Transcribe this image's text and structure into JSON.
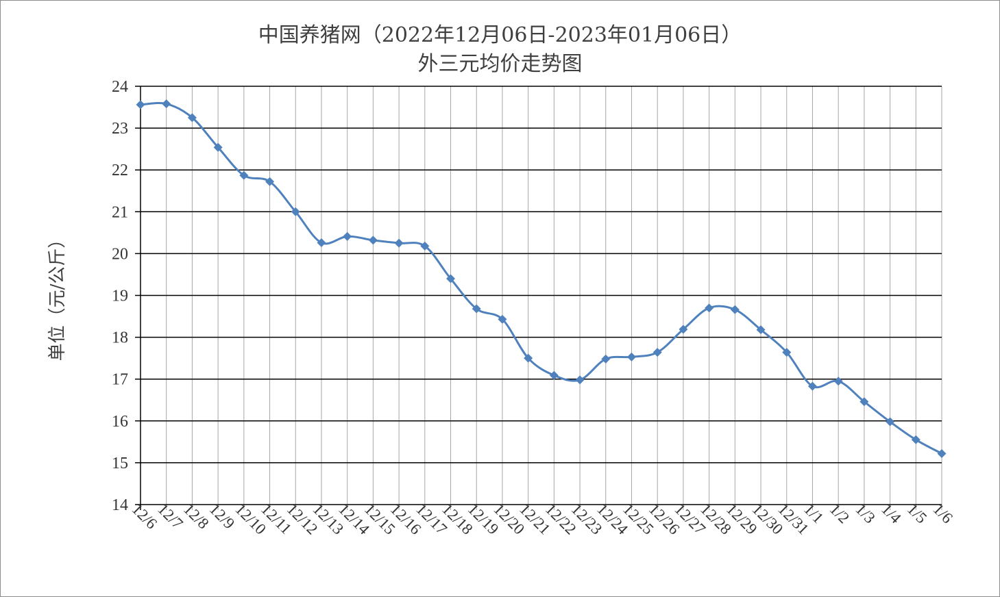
{
  "chart_data": {
    "type": "line",
    "title": "中国养猪网（2022年12月06日-2023年01月06日）",
    "subtitle": "外三元均价走势图",
    "xlabel": "",
    "ylabel": "单位（元/公斤）",
    "ylim": [
      14,
      24
    ],
    "yticks": [
      14,
      15,
      16,
      17,
      18,
      19,
      20,
      21,
      22,
      23,
      24
    ],
    "grid": true,
    "smooth": true,
    "categories": [
      "12/6",
      "12/7",
      "12/8",
      "12/9",
      "12/10",
      "12/11",
      "12/12",
      "12/13",
      "12/14",
      "12/15",
      "12/16",
      "12/17",
      "12/18",
      "12/19",
      "12/20",
      "12/21",
      "12/22",
      "12/23",
      "12/24",
      "12/25",
      "12/26",
      "12/27",
      "12/28",
      "12/29",
      "12/30",
      "12/31",
      "1/1",
      "1/2",
      "1/3",
      "1/4",
      "1/5",
      "1/6"
    ],
    "series": [
      {
        "values": [
          23.56,
          23.58,
          23.25,
          22.54,
          21.87,
          21.72,
          21.0,
          20.26,
          20.41,
          20.32,
          20.25,
          20.18,
          19.4,
          18.68,
          18.43,
          17.5,
          17.09,
          16.98,
          17.48,
          17.53,
          17.64,
          18.19,
          18.7,
          18.66,
          18.18,
          17.64,
          16.83,
          16.95,
          16.46,
          15.98,
          15.55,
          15.22
        ]
      }
    ],
    "colors": {
      "line": "#4f81bd",
      "grid": "#000000",
      "vgrid": "#a6a6a6"
    }
  }
}
